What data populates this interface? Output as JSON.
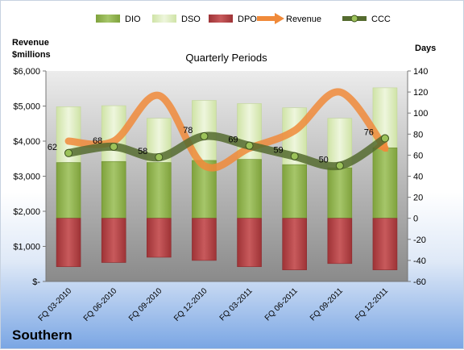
{
  "chart_data": {
    "type": "bar",
    "title": "Quarterly Periods",
    "company": "Southern",
    "y_left_label_line1": "Revenue",
    "y_left_label_line2": "$millions",
    "y_right_label": "Days",
    "ylim_left": [
      0,
      6000
    ],
    "ylim_right": [
      -60,
      140
    ],
    "y_left_ticks": [
      "$-",
      "$1,000",
      "$2,000",
      "$3,000",
      "$4,000",
      "$5,000",
      "$6,000"
    ],
    "y_left_tick_values": [
      0,
      1000,
      2000,
      3000,
      4000,
      5000,
      6000
    ],
    "y_right_ticks": [
      "-60",
      "-40",
      "-20",
      "0",
      "20",
      "40",
      "60",
      "80",
      "100",
      "120",
      "140"
    ],
    "y_right_tick_values": [
      -60,
      -40,
      -20,
      0,
      20,
      40,
      60,
      80,
      100,
      120,
      140
    ],
    "categories": [
      "FQ 03-2010",
      "FQ 06-2010",
      "FQ 09-2010",
      "FQ 12-2010",
      "FQ 03-2011",
      "FQ 06-2011",
      "FQ 09-2011",
      "FQ 12-2011"
    ],
    "legend": [
      "DIO",
      "DSO",
      "DPO",
      "Revenue",
      "CCC"
    ],
    "series": [
      {
        "name": "DIO",
        "axis": "right",
        "values": [
          53,
          54,
          53,
          55,
          56,
          51,
          48,
          67
        ]
      },
      {
        "name": "DSO",
        "axis": "right",
        "values": [
          106,
          107,
          95,
          112,
          109,
          105,
          95,
          124
        ]
      },
      {
        "name": "DPO",
        "axis": "right",
        "values": [
          -46,
          -42,
          -37,
          -40,
          -46,
          -49,
          -43,
          -49
        ]
      },
      {
        "name": "Revenue",
        "axis": "left",
        "values": [
          4000,
          4000,
          5300,
          3300,
          3800,
          4300,
          5400,
          3800
        ]
      },
      {
        "name": "CCC",
        "axis": "right",
        "values": [
          62,
          68,
          58,
          78,
          69,
          59,
          50,
          76
        ]
      }
    ],
    "colors": {
      "DIO": "#8db14a",
      "DSO": "#dcebbd",
      "DPO": "#b8474a",
      "Revenue": "#f08a3a",
      "CCC": "#556b2f",
      "plot_top": "#ececec",
      "plot_bottom": "#8a8a8a"
    }
  }
}
